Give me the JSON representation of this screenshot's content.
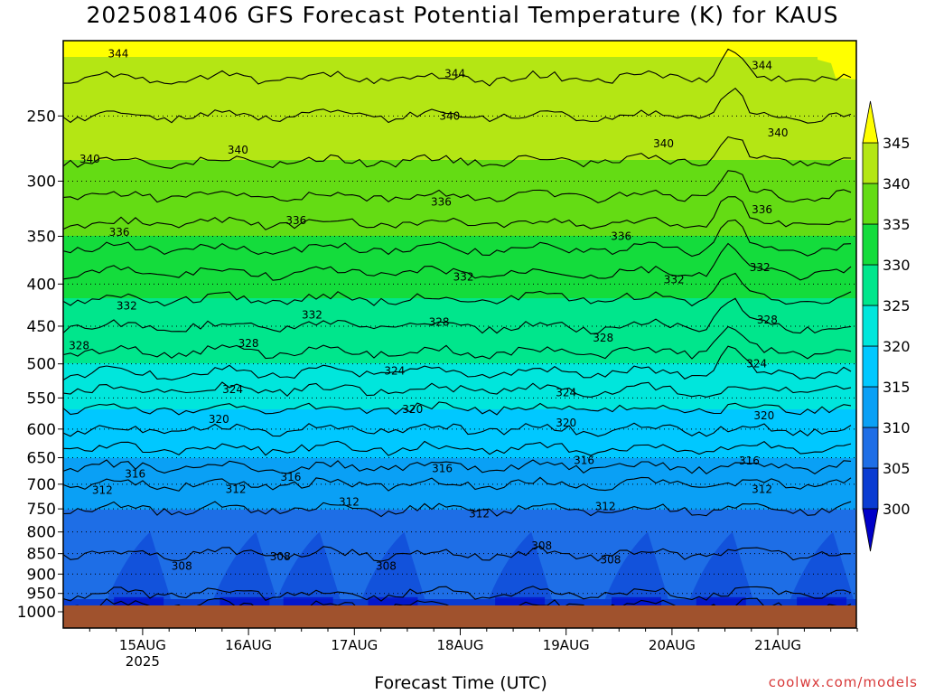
{
  "chart_data": {
    "type": "contour",
    "title": "2025081406 GFS Forecast Potential Temperature (K) for KAUS",
    "xlabel": "Forecast Time (UTC)",
    "ylabel": "",
    "credit": "coolwx.com/models",
    "y_scale": "log-pressure",
    "y_unit": "hPa",
    "ylim": [
      1010,
      200
    ],
    "y_ticks": [
      250,
      300,
      350,
      400,
      450,
      500,
      550,
      600,
      650,
      700,
      750,
      800,
      850,
      900,
      950,
      1000
    ],
    "x_range_days": [
      "14AUG 06Z",
      "21AUG 18Z"
    ],
    "x_ticks": [
      {
        "label": "15AUG",
        "sub": "2025"
      },
      {
        "label": "16AUG",
        "sub": ""
      },
      {
        "label": "17AUG",
        "sub": ""
      },
      {
        "label": "18AUG",
        "sub": ""
      },
      {
        "label": "19AUG",
        "sub": ""
      },
      {
        "label": "20AUG",
        "sub": ""
      },
      {
        "label": "21AUG",
        "sub": ""
      }
    ],
    "grid": "dotted pressure levels",
    "legend": {
      "placement": "right colorbar",
      "levels": [
        300,
        305,
        310,
        315,
        320,
        325,
        330,
        335,
        340,
        345
      ],
      "colors": [
        "#0000c8",
        "#0a3cd2",
        "#1e6ee6",
        "#0aa0f5",
        "#00c8ff",
        "#00e6dc",
        "#00e68c",
        "#14dc3c",
        "#64dc14",
        "#b4e614",
        "#ffff00"
      ]
    },
    "profile": {
      "pressure_hPa": [
        1000,
        950,
        900,
        850,
        800,
        750,
        700,
        650,
        600,
        550,
        500,
        450,
        400,
        350,
        300,
        250,
        200
      ],
      "theta_K": [
        303,
        306,
        307,
        308,
        309,
        310,
        312,
        315,
        318,
        321,
        325,
        328,
        331,
        335,
        339,
        342,
        346
      ]
    },
    "contour_labels": [
      {
        "text": "344",
        "day": 14.77,
        "p": 210
      },
      {
        "text": "344",
        "day": 17.95,
        "p": 222
      },
      {
        "text": "344",
        "day": 20.85,
        "p": 217
      },
      {
        "text": "340",
        "day": 14.5,
        "p": 282
      },
      {
        "text": "340",
        "day": 15.9,
        "p": 275
      },
      {
        "text": "340",
        "day": 17.9,
        "p": 250
      },
      {
        "text": "340",
        "day": 19.92,
        "p": 270
      },
      {
        "text": "340",
        "day": 21.0,
        "p": 262
      },
      {
        "text": "336",
        "day": 14.78,
        "p": 346
      },
      {
        "text": "336",
        "day": 16.45,
        "p": 335
      },
      {
        "text": "336",
        "day": 17.82,
        "p": 318
      },
      {
        "text": "336",
        "day": 19.52,
        "p": 350
      },
      {
        "text": "336",
        "day": 20.85,
        "p": 325
      },
      {
        "text": "332",
        "day": 14.85,
        "p": 425
      },
      {
        "text": "332",
        "day": 16.6,
        "p": 436
      },
      {
        "text": "332",
        "day": 18.03,
        "p": 392
      },
      {
        "text": "332",
        "day": 20.02,
        "p": 395
      },
      {
        "text": "332",
        "day": 20.83,
        "p": 382
      },
      {
        "text": "328",
        "day": 14.4,
        "p": 475
      },
      {
        "text": "328",
        "day": 16.0,
        "p": 472
      },
      {
        "text": "328",
        "day": 17.8,
        "p": 445
      },
      {
        "text": "328",
        "day": 19.35,
        "p": 465
      },
      {
        "text": "328",
        "day": 20.9,
        "p": 442
      },
      {
        "text": "324",
        "day": 15.85,
        "p": 537
      },
      {
        "text": "324",
        "day": 17.38,
        "p": 510
      },
      {
        "text": "324",
        "day": 19.0,
        "p": 542
      },
      {
        "text": "324",
        "day": 20.8,
        "p": 500
      },
      {
        "text": "320",
        "day": 15.72,
        "p": 584
      },
      {
        "text": "320",
        "day": 17.55,
        "p": 568
      },
      {
        "text": "320",
        "day": 19.0,
        "p": 590
      },
      {
        "text": "320",
        "day": 20.87,
        "p": 578
      },
      {
        "text": "316",
        "day": 14.93,
        "p": 680
      },
      {
        "text": "316",
        "day": 16.4,
        "p": 686
      },
      {
        "text": "316",
        "day": 17.83,
        "p": 670
      },
      {
        "text": "316",
        "day": 19.17,
        "p": 655
      },
      {
        "text": "316",
        "day": 20.73,
        "p": 656
      },
      {
        "text": "312",
        "day": 14.62,
        "p": 712
      },
      {
        "text": "312",
        "day": 15.88,
        "p": 710
      },
      {
        "text": "312",
        "day": 16.95,
        "p": 736
      },
      {
        "text": "312",
        "day": 18.18,
        "p": 760
      },
      {
        "text": "312",
        "day": 19.37,
        "p": 745
      },
      {
        "text": "312",
        "day": 20.85,
        "p": 710
      },
      {
        "text": "308",
        "day": 15.37,
        "p": 880
      },
      {
        "text": "308",
        "day": 16.3,
        "p": 857
      },
      {
        "text": "308",
        "day": 17.3,
        "p": 880
      },
      {
        "text": "308",
        "day": 18.77,
        "p": 832
      },
      {
        "text": "308",
        "day": 19.42,
        "p": 865
      }
    ]
  }
}
